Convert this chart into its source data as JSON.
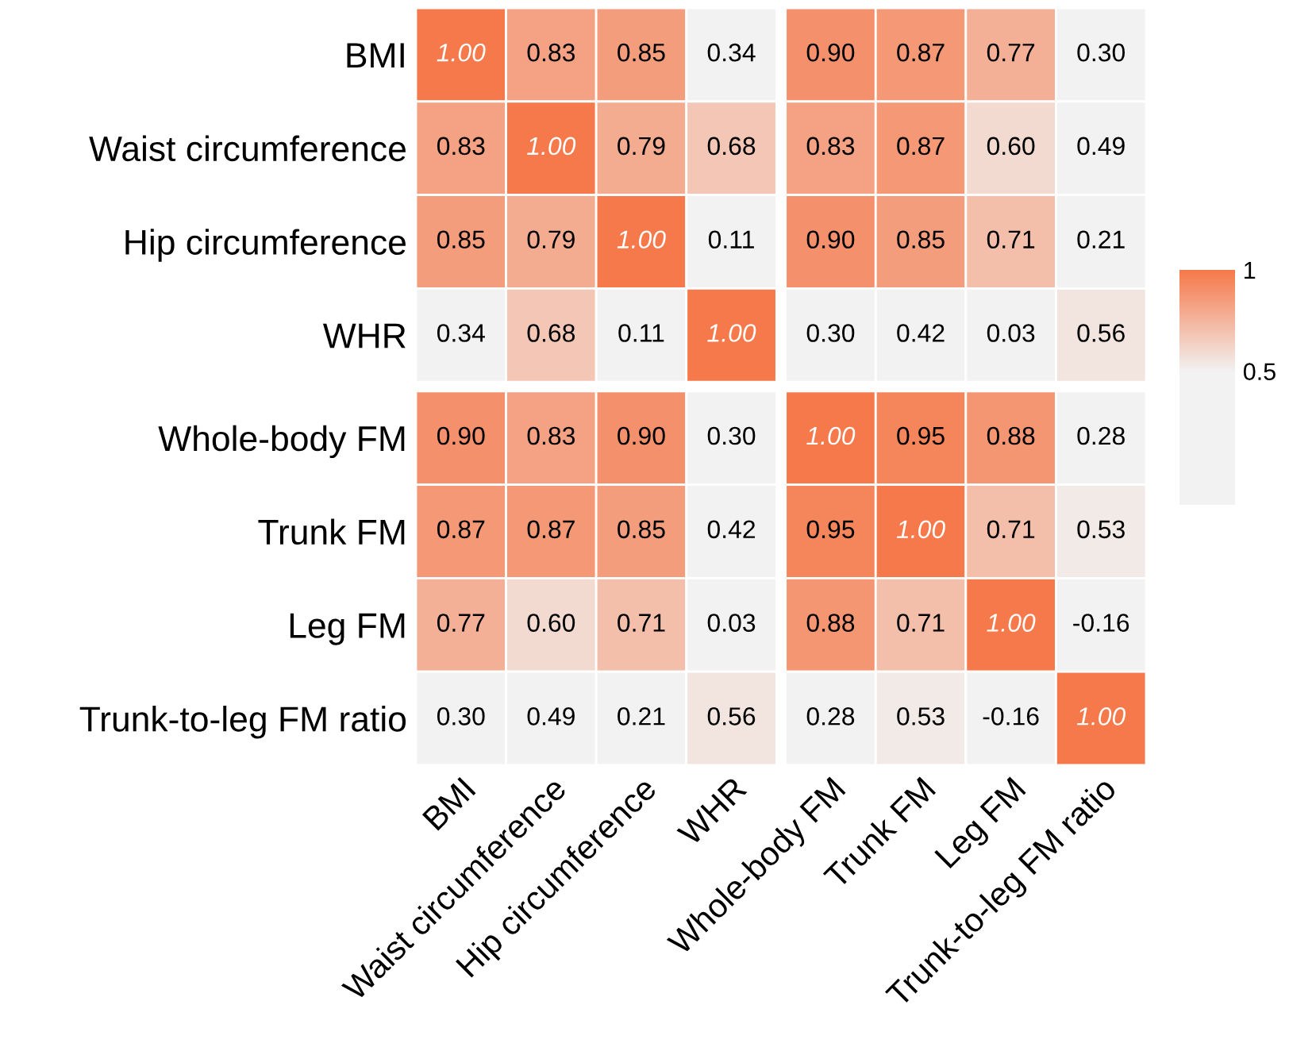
{
  "chart_data": {
    "type": "heatmap",
    "categories": [
      "BMI",
      "Waist circumference",
      "Hip circumference",
      "WHR",
      "Whole-body FM",
      "Trunk FM",
      "Leg FM",
      "Trunk-to-leg FM ratio"
    ],
    "y_categories": [
      "BMI",
      "Waist circumference",
      "Hip circumference",
      "WHR",
      "Whole-body FM",
      "Trunk FM",
      "Leg FM",
      "Trunk-to-leg FM ratio"
    ],
    "cells": [
      [
        1.0,
        0.83,
        0.85,
        0.34,
        0.9,
        0.87,
        0.77,
        0.3
      ],
      [
        0.83,
        1.0,
        0.79,
        0.68,
        0.83,
        0.87,
        0.6,
        0.49
      ],
      [
        0.85,
        0.79,
        1.0,
        0.11,
        0.9,
        0.85,
        0.71,
        0.21
      ],
      [
        0.34,
        0.68,
        0.11,
        1.0,
        0.3,
        0.42,
        0.03,
        0.56
      ],
      [
        0.9,
        0.83,
        0.9,
        0.3,
        1.0,
        0.95,
        0.88,
        0.28
      ],
      [
        0.87,
        0.87,
        0.85,
        0.42,
        0.95,
        1.0,
        0.71,
        0.53
      ],
      [
        0.77,
        0.6,
        0.71,
        0.03,
        0.88,
        0.71,
        1.0,
        -0.16
      ],
      [
        0.3,
        0.49,
        0.21,
        0.56,
        0.28,
        0.53,
        -0.16,
        1.0
      ]
    ],
    "cell_labels": [
      [
        "1.00",
        "0.83",
        "0.85",
        "0.34",
        "0.90",
        "0.87",
        "0.77",
        "0.30"
      ],
      [
        "0.83",
        "1.00",
        "0.79",
        "0.68",
        "0.83",
        "0.87",
        "0.60",
        "0.49"
      ],
      [
        "0.85",
        "0.79",
        "1.00",
        "0.11",
        "0.90",
        "0.85",
        "0.71",
        "0.21"
      ],
      [
        "0.34",
        "0.68",
        "0.11",
        "1.00",
        "0.30",
        "0.42",
        "0.03",
        "0.56"
      ],
      [
        "0.90",
        "0.83",
        "0.90",
        "0.30",
        "1.00",
        "0.95",
        "0.88",
        "0.28"
      ],
      [
        "0.87",
        "0.87",
        "0.85",
        "0.42",
        "0.95",
        "1.00",
        "0.71",
        "0.53"
      ],
      [
        "0.77",
        "0.60",
        "0.71",
        "0.03",
        "0.88",
        "0.71",
        "1.00",
        "-0.16"
      ],
      [
        "0.30",
        "0.49",
        "0.21",
        "0.56",
        "0.28",
        "0.53",
        "-0.16",
        "1.00"
      ]
    ],
    "clim": [
      -0.16,
      1
    ],
    "cticks": [
      0.5,
      1
    ]
  }
}
